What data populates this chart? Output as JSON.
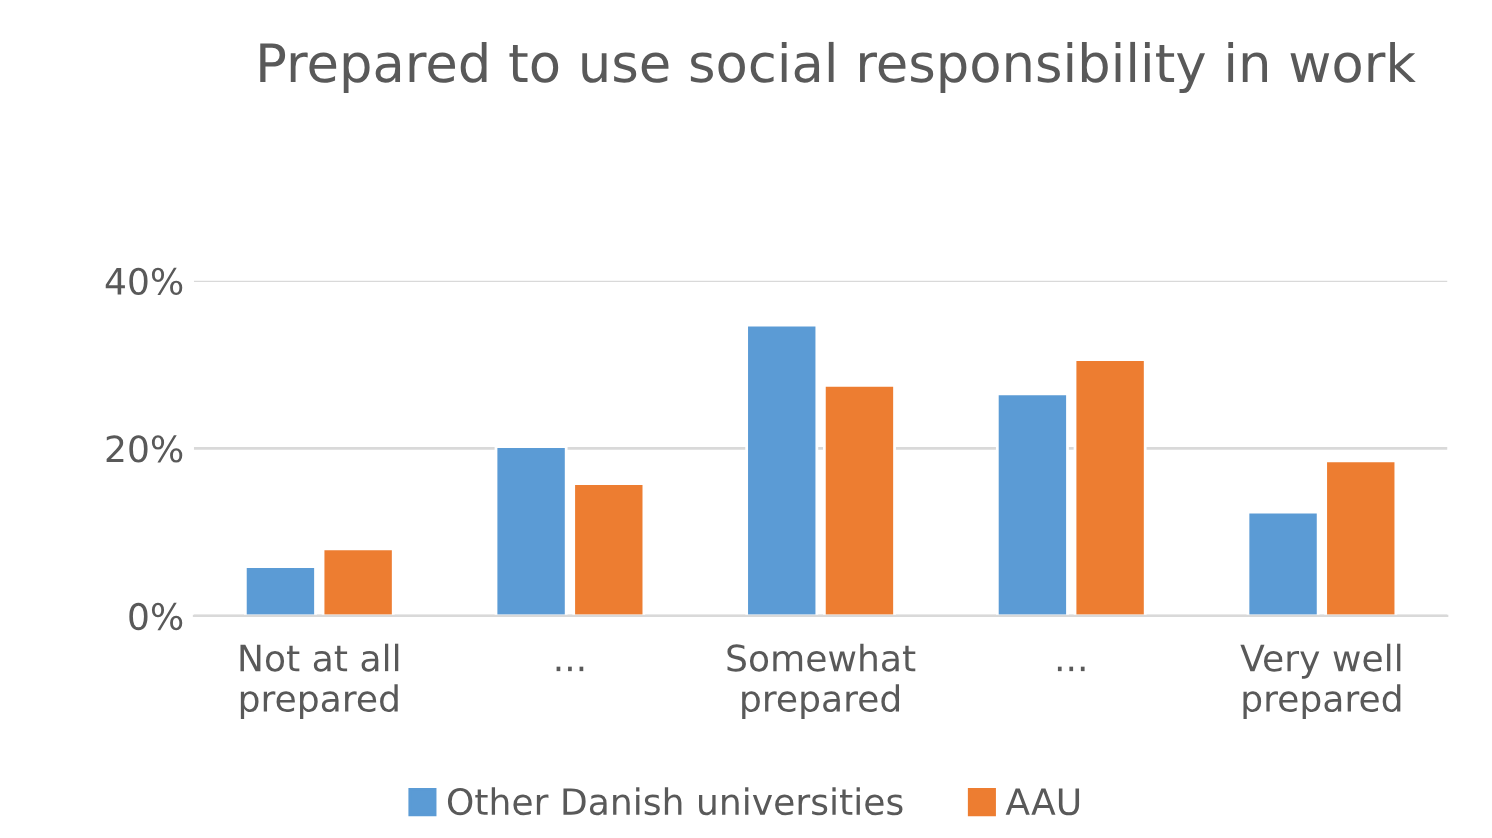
{
  "chart_data": {
    "type": "bar",
    "title": "Prepared to use social responsibility in work",
    "categories": [
      "Not at all\nprepared",
      "...",
      "Somewhat\nprepared",
      "...",
      "Very well\nprepared"
    ],
    "series": [
      {
        "name": "Other Danish universities",
        "color": "#5b9bd5",
        "values": [
          5.9,
          20.2,
          34.7,
          26.5,
          12.4
        ]
      },
      {
        "name": "AAU",
        "color": "#ed7d31",
        "values": [
          8.0,
          15.8,
          27.5,
          30.6,
          18.5
        ]
      }
    ],
    "ylim": [
      0,
      40
    ],
    "yticks": [
      {
        "value": 0,
        "label": "0%"
      },
      {
        "value": 20,
        "label": "20%"
      },
      {
        "value": 40,
        "label": "40%"
      }
    ],
    "grid": "y",
    "legend": "bottom"
  }
}
